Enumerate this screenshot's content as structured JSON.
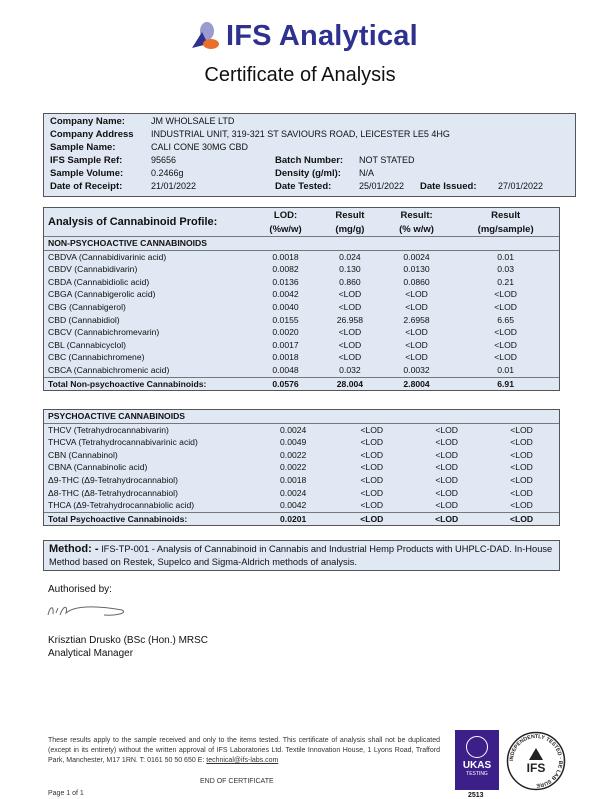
{
  "header": {
    "brand": "IFS Analytical",
    "title": "Certificate of Analysis",
    "brand_color": "#2e3190",
    "accent_orange": "#e8702a"
  },
  "info": {
    "company_name_label": "Company Name:",
    "company_name": "JM WHOLSALE LTD",
    "company_address_label": "Company Address",
    "company_address": "INDUSTRIAL UNIT, 319-321 ST SAVIOURS ROAD, LEICESTER LE5 4HG",
    "sample_name_label": "Sample Name:",
    "sample_name": "CALI CONE 30MG CBD",
    "sample_ref_label": "IFS Sample Ref:",
    "sample_ref": "95656",
    "batch_label": "Batch Number:",
    "batch": "NOT STATED",
    "volume_label": "Sample Volume:",
    "volume": "0.2466g",
    "density_label": "Density (g/ml):",
    "density": "N/A",
    "receipt_label": "Date of Receipt:",
    "receipt": "21/01/2022",
    "tested_label": "Date Tested:",
    "tested": "25/01/2022",
    "issued_label": "Date Issued:",
    "issued": "27/01/2022"
  },
  "profile": {
    "title": "Analysis of Cannabinoid Profile:",
    "columns": [
      [
        "LOD:",
        "(%w/w)"
      ],
      [
        "Result",
        "(mg/g)"
      ],
      [
        "Result:",
        "(% w/w)"
      ],
      [
        "Result",
        "(mg/sample)"
      ]
    ],
    "non_psycho": {
      "heading": "NON-PSYCHOACTIVE CANNABINOIDS",
      "rows": [
        [
          "CBDVA (Cannabidivarinic acid)",
          "0.0018",
          "0.024",
          "0.0024",
          "0.01"
        ],
        [
          "CBDV (Cannabidivarin)",
          "0.0082",
          "0.130",
          "0.0130",
          "0.03"
        ],
        [
          "CBDA (Cannabidiolic acid)",
          "0.0136",
          "0.860",
          "0.0860",
          "0.21"
        ],
        [
          "CBGA (Cannabigerolic acid)",
          "0.0042",
          "<LOD",
          "<LOD",
          "<LOD"
        ],
        [
          "CBG (Cannabigerol)",
          "0.0040",
          "<LOD",
          "<LOD",
          "<LOD"
        ],
        [
          "CBD (Cannabidiol)",
          "0.0155",
          "26.958",
          "2.6958",
          "6.65"
        ],
        [
          "CBCV (Cannabichromevarin)",
          "0.0020",
          "<LOD",
          "<LOD",
          "<LOD"
        ],
        [
          "CBL (Cannabicyclol)",
          "0.0017",
          "<LOD",
          "<LOD",
          "<LOD"
        ],
        [
          "CBC (Cannabichromene)",
          "0.0018",
          "<LOD",
          "<LOD",
          "<LOD"
        ],
        [
          "CBCA (Cannabichromenic acid)",
          "0.0048",
          "0.032",
          "0.0032",
          "0.01"
        ]
      ],
      "total": [
        "Total Non-psychoactive Cannabinoids:",
        "0.0576",
        "28.004",
        "2.8004",
        "6.91"
      ]
    },
    "psycho": {
      "heading": "PSYCHOACTIVE CANNABINOIDS",
      "rows": [
        [
          "THCV (Tetrahydrocannabivarin)",
          "0.0024",
          "<LOD",
          "<LOD",
          "<LOD"
        ],
        [
          "THCVA (Tetrahydrocannabivarinic acid)",
          "0.0049",
          "<LOD",
          "<LOD",
          "<LOD"
        ],
        [
          "CBN (Cannabinol)",
          "0.0022",
          "<LOD",
          "<LOD",
          "<LOD"
        ],
        [
          "CBNA (Cannabinolic acid)",
          "0.0022",
          "<LOD",
          "<LOD",
          "<LOD"
        ],
        [
          "Δ9-THC (Δ9-Tetrahydrocannabiol)",
          "0.0018",
          "<LOD",
          "<LOD",
          "<LOD"
        ],
        [
          "Δ8-THC (Δ8-Tetrahydrocannabiol)",
          "0.0024",
          "<LOD",
          "<LOD",
          "<LOD"
        ],
        [
          "THCA (Δ9-Tetrahydrocannabiolic acid)",
          "0.0042",
          "<LOD",
          "<LOD",
          "<LOD"
        ]
      ],
      "total": [
        "Total Psychoactive Cannabinoids:",
        "0.0201",
        "<LOD",
        "<LOD",
        "<LOD"
      ]
    }
  },
  "method": {
    "label": "Method: -",
    "text": "IFS-TP-001 - Analysis of Cannabinoid in Cannabis and Industrial Hemp Products with UHPLC-DAD. In-House Method based on Restek, Supelco and Sigma-Aldrich methods of analysis."
  },
  "auth": {
    "label": "Authorised by:",
    "name": "Krisztian Drusko (BSc (Hon.) MRSC",
    "role": "Analytical Manager"
  },
  "footer": {
    "text": "These results apply to the sample received and only to the items tested. This certificate of analysis shall not be duplicated (except in its entirety) without the written approval of IFS Laboratories Ltd. Textile Innovation House, 1 Lyons Road, Trafford Park, Manchester, M17 1RN. T: 0161 50 50 650 E: ",
    "email": "technical@ifs-labs.com",
    "end": "END OF CERTIFICATE",
    "page": "Page 1 of 1"
  },
  "badges": {
    "ukas": "UKAS",
    "ukas_sub": "TESTING",
    "ukas_num": "2513",
    "ifs": "IFS",
    "ifs_ring": "INDEPENDENTLY TESTED · BE LAB SURE",
    "ukas_color": "#3d1f8a"
  }
}
